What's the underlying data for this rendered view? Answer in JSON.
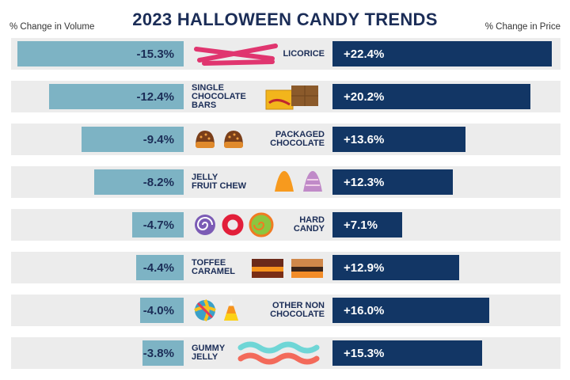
{
  "chart_data": {
    "type": "bar",
    "title": "2023 HALLOWEEN CANDY TRENDS",
    "left_axis_label": "% Change in Volume",
    "right_axis_label": "% Change in Price",
    "categories": [
      "LICORICE",
      "SINGLE CHOCOLATE BARS",
      "PACKAGED CHOCOLATE",
      "JELLY FRUIT CHEW",
      "HARD CANDY",
      "TOFFEE CARAMEL",
      "OTHER NON CHOCOLATE",
      "GUMMY JELLY"
    ],
    "category_lines": [
      [
        "LICORICE"
      ],
      [
        "SINGLE",
        "CHOCOLATE",
        "BARS"
      ],
      [
        "PACKAGED",
        "CHOCOLATE"
      ],
      [
        "JELLY",
        "FRUIT CHEW"
      ],
      [
        "HARD",
        "CANDY"
      ],
      [
        "TOFFEE",
        "CARAMEL"
      ],
      [
        "OTHER NON",
        "CHOCOLATE"
      ],
      [
        "GUMMY",
        "JELLY"
      ]
    ],
    "series": [
      {
        "name": "% Change in Volume",
        "values": [
          -15.3,
          -12.4,
          -9.4,
          -8.2,
          -4.7,
          -4.4,
          -4.0,
          -3.8
        ],
        "labels": [
          "-15.3%",
          "-12.4%",
          "-9.4%",
          "-8.2%",
          "-4.7%",
          "-4.4%",
          "-4.0%",
          "-3.8%"
        ],
        "color": "#7db3c4"
      },
      {
        "name": "% Change in Price",
        "values": [
          22.4,
          20.2,
          13.6,
          12.3,
          7.1,
          12.9,
          16.0,
          15.3
        ],
        "labels": [
          "+22.4%",
          "+20.2%",
          "+13.6%",
          "+12.3%",
          "+7.1%",
          "+12.9%",
          "+16.0%",
          "+15.3%"
        ],
        "color": "#123665"
      }
    ],
    "icons": [
      [
        "licorice-icon"
      ],
      [
        "chocolate-bar-icon"
      ],
      [
        "chocolate-truffle-icon",
        "chocolate-truffle-icon"
      ],
      [
        "gumdrop-orange-icon",
        "gumdrop-purple-icon"
      ],
      [
        "swirl-candy-purple-icon",
        "ring-candy-red-icon",
        "swirl-candy-green-icon"
      ],
      [
        "toffee-icon",
        "caramel-icon"
      ],
      [
        "lollipop-icon",
        "candy-corn-icon"
      ],
      [
        "gummy-worm-icon"
      ]
    ],
    "grid": false,
    "colors": {
      "title": "#1b2d57",
      "row_background": "#ececec"
    }
  }
}
